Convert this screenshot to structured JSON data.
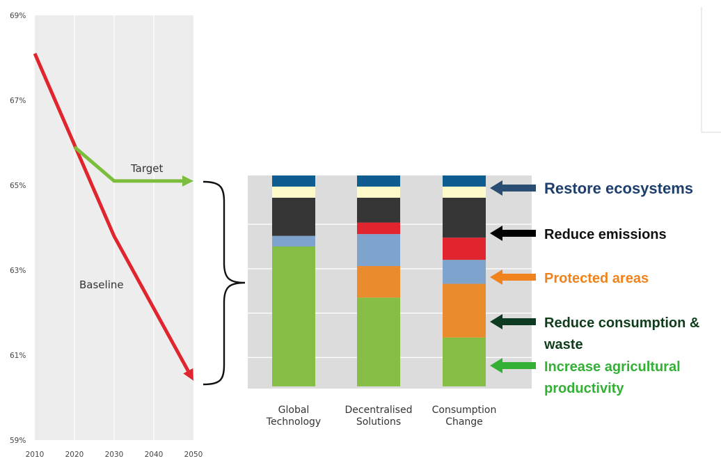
{
  "chart_data": [
    {
      "type": "line",
      "ylim": [
        59,
        69
      ],
      "y_ticks": [
        "59%",
        "61%",
        "63%",
        "65%",
        "67%",
        "69%"
      ],
      "x_ticks": [
        "2010",
        "2020",
        "2030",
        "2040",
        "2050"
      ],
      "xlim": [
        2010,
        2050
      ],
      "grid": "vertical",
      "series": [
        {
          "name": "Baseline",
          "color": "#e0252f",
          "x": [
            2010,
            2030,
            2050
          ],
          "y": [
            68.1,
            63.8,
            60.4
          ]
        },
        {
          "name": "Target",
          "color": "#7cbd3c",
          "x": [
            2020,
            2030,
            2050
          ],
          "y": [
            65.9,
            65.1,
            65.1
          ]
        }
      ]
    },
    {
      "type": "bar",
      "stacked": true,
      "categories": [
        [
          "Global",
          "Technology"
        ],
        [
          "Decentralised",
          "Solutions"
        ],
        [
          "Consumption",
          "Change"
        ]
      ],
      "ylim": [
        60.3,
        65.1
      ],
      "grid": "horizontal",
      "segment_colors": [
        "#86bd45",
        "#1d5e2b",
        "#ea8c2e",
        "#7ea3cc",
        "#e0252f",
        "#363636",
        "#fffac9",
        "#0f5c91"
      ],
      "segment_bounds": [
        [
          60.35,
          63.5,
          63.5,
          63.5,
          63.74,
          63.74,
          64.6,
          64.85,
          65.1
        ],
        [
          60.35,
          62.35,
          62.35,
          63.06,
          63.78,
          64.04,
          64.6,
          64.85,
          65.1
        ],
        [
          60.35,
          61.45,
          61.45,
          62.66,
          63.2,
          63.7,
          64.6,
          64.85,
          65.1
        ]
      ]
    }
  ],
  "lines": {
    "baseline_label": "Baseline",
    "target_label": "Target"
  },
  "legend": [
    {
      "text": "Restore ecosystems",
      "color": "#1d3f6e",
      "arrow": "#2a4e73",
      "big": true
    },
    {
      "text": "Reduce emissions",
      "color": "#111111",
      "arrow": "#000000"
    },
    {
      "text": "Protected areas",
      "color": "#f0831e",
      "arrow": "#f0831e"
    },
    {
      "text": "Reduce consumption &",
      "text2": "waste",
      "color": "#0f3d1c",
      "arrow": "#0c3b22"
    },
    {
      "text": "Increase agricultural",
      "text2": "productivity",
      "color": "#33b035",
      "arrow": "#33b035"
    }
  ]
}
